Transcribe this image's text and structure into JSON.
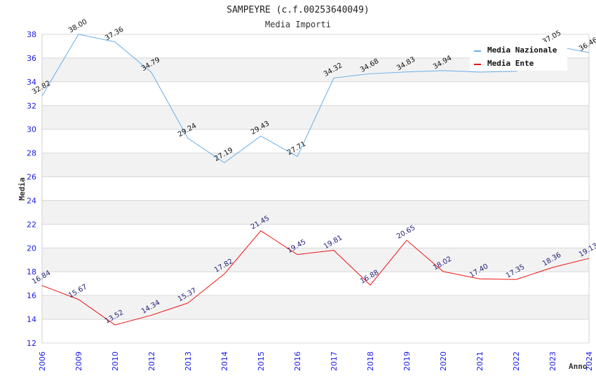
{
  "chart_data": {
    "type": "line",
    "title": "SAMPEYRE (c.f.00253640049)",
    "subtitle": "Media Importi",
    "xlabel": "Anno",
    "ylabel": "Media",
    "ylim": [
      12,
      38
    ],
    "yticks": [
      12,
      14,
      16,
      18,
      20,
      22,
      24,
      26,
      28,
      30,
      32,
      34,
      36,
      38
    ],
    "grid": true,
    "legend_position": "top-right",
    "categories": [
      "2006",
      "2009",
      "2010",
      "2012",
      "2013",
      "2014",
      "2015",
      "2016",
      "2017",
      "2018",
      "2019",
      "2020",
      "2021",
      "2022",
      "2023",
      "2024"
    ],
    "series": [
      {
        "name": "Media Nazionale",
        "color": "#6aaee8",
        "label_color": "#111111",
        "values": [
          32.82,
          38.0,
          37.36,
          34.79,
          29.24,
          27.19,
          29.43,
          27.71,
          34.32,
          34.68,
          34.83,
          34.94,
          34.82,
          34.88,
          37.05,
          36.46
        ],
        "labels": [
          "32.82",
          "38.00",
          "37.36",
          "34.79",
          "29.24",
          "27.19",
          "29.43",
          "27.71",
          "34.32",
          "34.68",
          "34.83",
          "34.94",
          null,
          null,
          "37.05",
          "36.46"
        ]
      },
      {
        "name": "Media Ente",
        "color": "#ee1111",
        "label_color": "#22227a",
        "values": [
          16.84,
          15.67,
          13.52,
          14.34,
          15.37,
          17.82,
          21.45,
          19.45,
          19.81,
          16.88,
          20.65,
          18.02,
          17.4,
          17.35,
          18.36,
          19.13
        ],
        "labels": [
          "16.84",
          "15.67",
          "13.52",
          "14.34",
          "15.37",
          "17.82",
          "21.45",
          "19.45",
          "19.81",
          "16.88",
          "20.65",
          "18.02",
          "17.40",
          "17.35",
          "18.36",
          "19.13"
        ]
      }
    ]
  }
}
